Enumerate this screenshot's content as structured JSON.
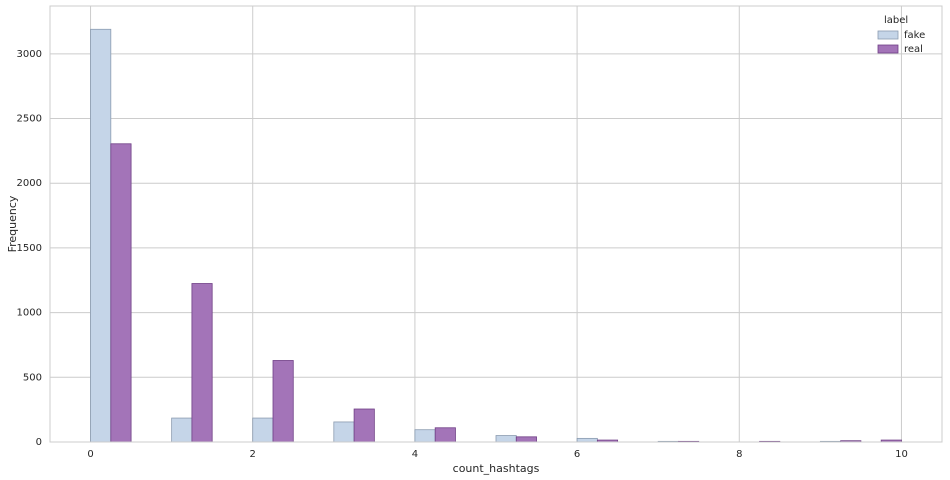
{
  "chart_data": {
    "type": "histogram",
    "multiple": "dodge",
    "xlabel": "count_hashtags",
    "ylabel": "Frequency",
    "legend_title": "label",
    "legend": "upper right",
    "grid": true,
    "bins": [
      0,
      0.5,
      1,
      1.5,
      2,
      2.5,
      3,
      3.5,
      4,
      4.5,
      5,
      5.5,
      6,
      6.5,
      7,
      7.5,
      8,
      8.5,
      9,
      9.5,
      10
    ],
    "series": [
      {
        "name": "fake",
        "color": "#c5d5e8",
        "edge": "#8a9bb0",
        "values": [
          3190,
          0,
          185,
          0,
          185,
          0,
          155,
          0,
          95,
          0,
          50,
          0,
          28,
          0,
          5,
          0,
          0,
          0,
          5,
          0
        ]
      },
      {
        "name": "real",
        "color": "#a374b8",
        "edge": "#6f3f86",
        "values": [
          2305,
          0,
          1225,
          0,
          630,
          0,
          255,
          0,
          110,
          0,
          40,
          0,
          15,
          0,
          5,
          0,
          5,
          0,
          10,
          15
        ]
      }
    ],
    "xlim": [
      -0.5,
      10.5
    ],
    "xticks": [
      0,
      2,
      4,
      6,
      8,
      10
    ],
    "ylim": [
      0,
      3370
    ],
    "yticks": [
      0,
      500,
      1000,
      1500,
      2000,
      2500,
      3000
    ]
  }
}
